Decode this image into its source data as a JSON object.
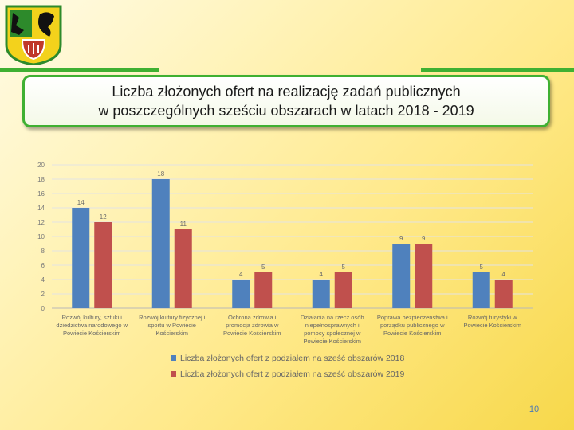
{
  "title": {
    "line1": "Liczba złożonych ofert na realizację zadań publicznych",
    "line2": "w poszczególnych sześciu obszarach w latach 2018 - 2019"
  },
  "page_number": "10",
  "colors": {
    "series2018": "#4f81bd",
    "series2019": "#c0504d",
    "accent": "#3fb032"
  },
  "chart_data": {
    "type": "bar",
    "title": "",
    "xlabel": "",
    "ylabel": "",
    "ylim": [
      0,
      20
    ],
    "yticks": [
      0,
      2,
      4,
      6,
      8,
      10,
      12,
      14,
      16,
      18,
      20
    ],
    "grid": true,
    "legend_position": "bottom",
    "categories": [
      [
        "Rozwój kultury, sztuki i",
        "dziedzictwa narodowego w",
        "Powiecie Kościerskim"
      ],
      [
        "Rozwój kultury fizycznej i",
        "sportu w Powiecie",
        "Kościerskim"
      ],
      [
        "Ochrona zdrowia i",
        "promocja zdrowia w",
        "Powiecie Kościerskim"
      ],
      [
        "Działania na rzecz osób",
        "niepełnosprawnych i",
        "pomocy społecznej w",
        "Powiecie Kościerskim"
      ],
      [
        "Poprawa bezpieczeństwa i",
        "porządku publicznego w",
        "Powiecie Kościerskim"
      ],
      [
        "Rozwój turystyki w",
        "Powiecie Kościerskim"
      ]
    ],
    "series": [
      {
        "name": "Liczba złożonych ofert z podziałem na sześć obszarów 2018",
        "values": [
          14,
          18,
          4,
          4,
          9,
          5
        ]
      },
      {
        "name": "Liczba złożonych ofert z podziałem na sześć obszarów 2019",
        "values": [
          12,
          11,
          5,
          5,
          9,
          4
        ]
      }
    ]
  }
}
